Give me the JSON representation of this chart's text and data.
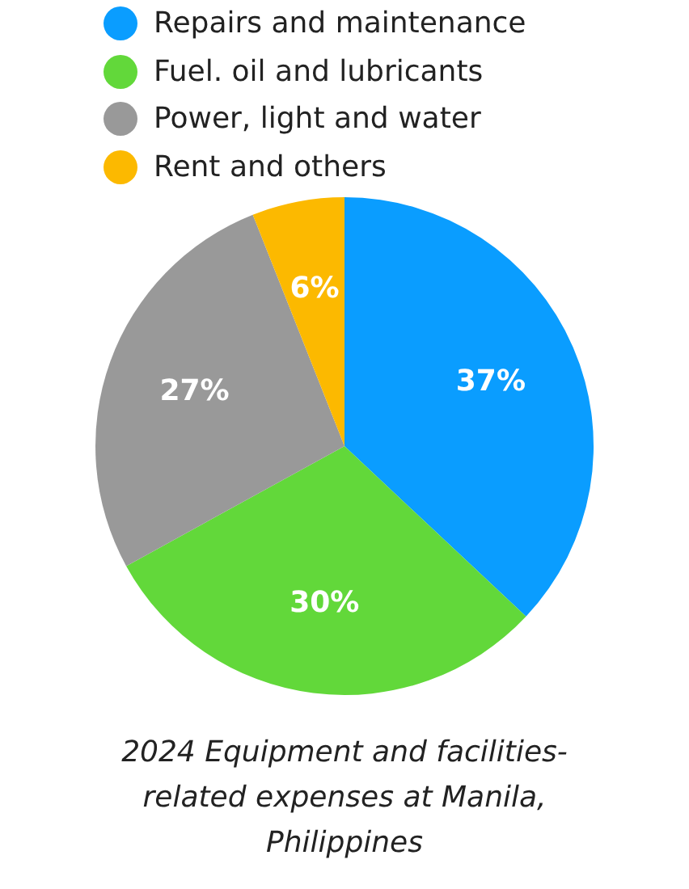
{
  "chart_data": {
    "type": "pie",
    "title": "2024 Equipment and facilities-related expenses at Manila, Philippines",
    "categories": [
      "Repairs and maintenance",
      "Fuel. oil and lubricants",
      "Power, light and water",
      "Rent and others"
    ],
    "values": [
      37,
      30,
      27,
      6
    ],
    "colors": [
      "#0a9dff",
      "#62d83a",
      "#999999",
      "#fcb900"
    ],
    "value_labels": [
      "37%",
      "30%",
      "27%",
      "6%"
    ],
    "legend": "top"
  }
}
